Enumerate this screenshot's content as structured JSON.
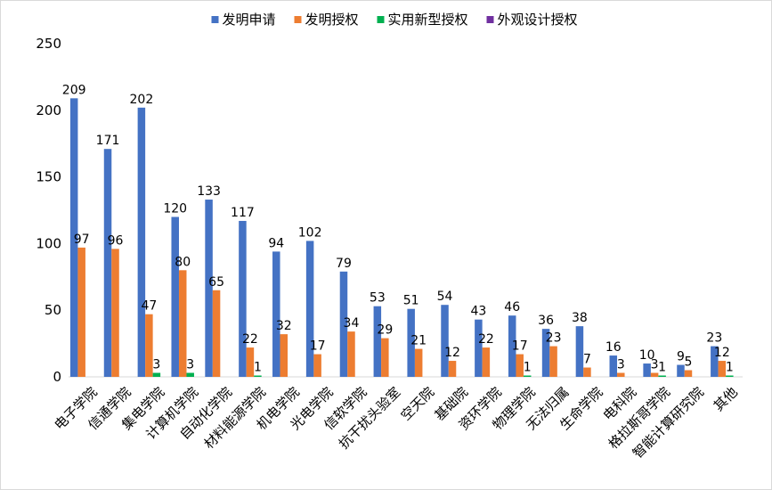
{
  "chart_data": {
    "type": "bar",
    "title": "",
    "xlabel": "",
    "ylabel": "",
    "ylim": [
      0,
      250
    ],
    "yticks": [
      0,
      50,
      100,
      150,
      200,
      250
    ],
    "grid": false,
    "legend_position": "top",
    "categories": [
      "电子学院",
      "信通学院",
      "集电学院",
      "计算机学院",
      "自动化学院",
      "材料能源学院",
      "机电学院",
      "光电学院",
      "信软学院",
      "抗干扰头验室",
      "空天院",
      "基础院",
      "资环学院",
      "物理学院",
      "无法归属",
      "生命学院",
      "电科院",
      "格拉斯哥学院",
      "智能计算研究院",
      "其他"
    ],
    "series": [
      {
        "name": "发明申请",
        "color": "#4472C4",
        "values": [
          209,
          171,
          202,
          120,
          133,
          117,
          94,
          102,
          79,
          53,
          51,
          54,
          43,
          46,
          36,
          38,
          16,
          10,
          9,
          23
        ]
      },
      {
        "name": "发明授权",
        "color": "#ED7D31",
        "values": [
          97,
          96,
          47,
          80,
          65,
          22,
          32,
          17,
          34,
          29,
          21,
          12,
          22,
          17,
          23,
          7,
          3,
          3,
          5,
          12
        ]
      },
      {
        "name": "实用新型授权",
        "color": "#00B050",
        "values": [
          0,
          0,
          3,
          3,
          0,
          1,
          0,
          0,
          0,
          0,
          0,
          0,
          0,
          1,
          0,
          0,
          0,
          1,
          0,
          1
        ]
      },
      {
        "name": "外观设计授权",
        "color": "#7030A0",
        "values": [
          0,
          0,
          0,
          0,
          0,
          0,
          0,
          0,
          0,
          0,
          0,
          0,
          0,
          0,
          0,
          0,
          0,
          0,
          0,
          0
        ]
      }
    ]
  }
}
